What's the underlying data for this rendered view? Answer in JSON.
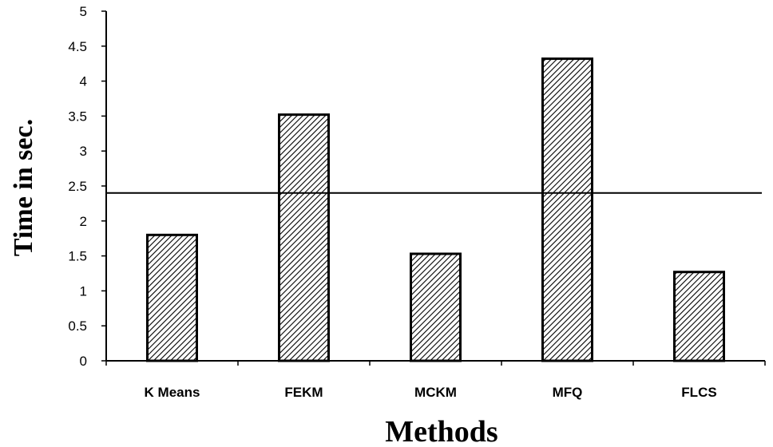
{
  "chart_data": {
    "type": "bar",
    "categories": [
      "K Means",
      "FEKM",
      "MCKM",
      "MFQ",
      "FLCS"
    ],
    "values": [
      1.8,
      3.52,
      1.53,
      4.32,
      1.27
    ],
    "xlabel": "Methods",
    "ylabel": "Time in sec.",
    "ylim": [
      0,
      5
    ],
    "yticks": [
      "0",
      "0.5",
      "1",
      "1.5",
      "2",
      "2.5",
      "3",
      "3.5",
      "4",
      "4.5",
      "5"
    ],
    "reference_line": 2.4,
    "grid": false,
    "bar_fill": "hatched",
    "colors": {
      "bar_stroke": "#000000",
      "hatch": "#000000",
      "background": "#ffffff"
    }
  }
}
